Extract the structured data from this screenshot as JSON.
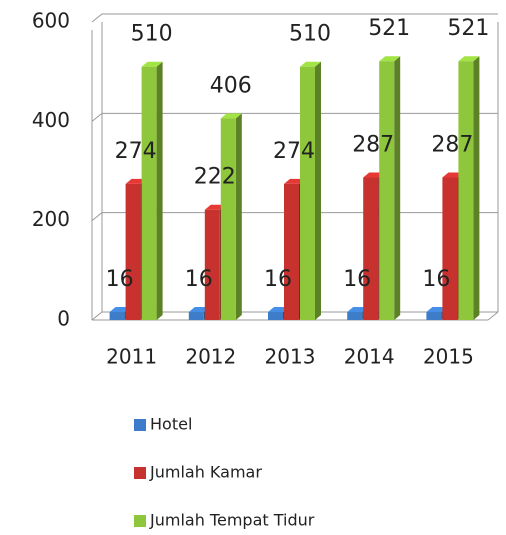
{
  "chart_data": {
    "type": "bar3d",
    "categories": [
      "2011",
      "2012",
      "2013",
      "2014",
      "2015"
    ],
    "series": [
      {
        "name": "Hotel",
        "color": "#3c7cc8",
        "values": [
          16,
          16,
          16,
          16,
          16
        ]
      },
      {
        "name": "Jumlah Kamar",
        "color": "#c8322e",
        "values": [
          274,
          222,
          274,
          287,
          287
        ]
      },
      {
        "name": "Jumlah Tempat Tidur",
        "color": "#8ec63c",
        "values": [
          510,
          406,
          510,
          521,
          521
        ]
      }
    ],
    "ylim": [
      0,
      600
    ],
    "yticks": [
      0,
      200,
      400,
      600
    ],
    "grid": true,
    "legend": "bottom"
  }
}
